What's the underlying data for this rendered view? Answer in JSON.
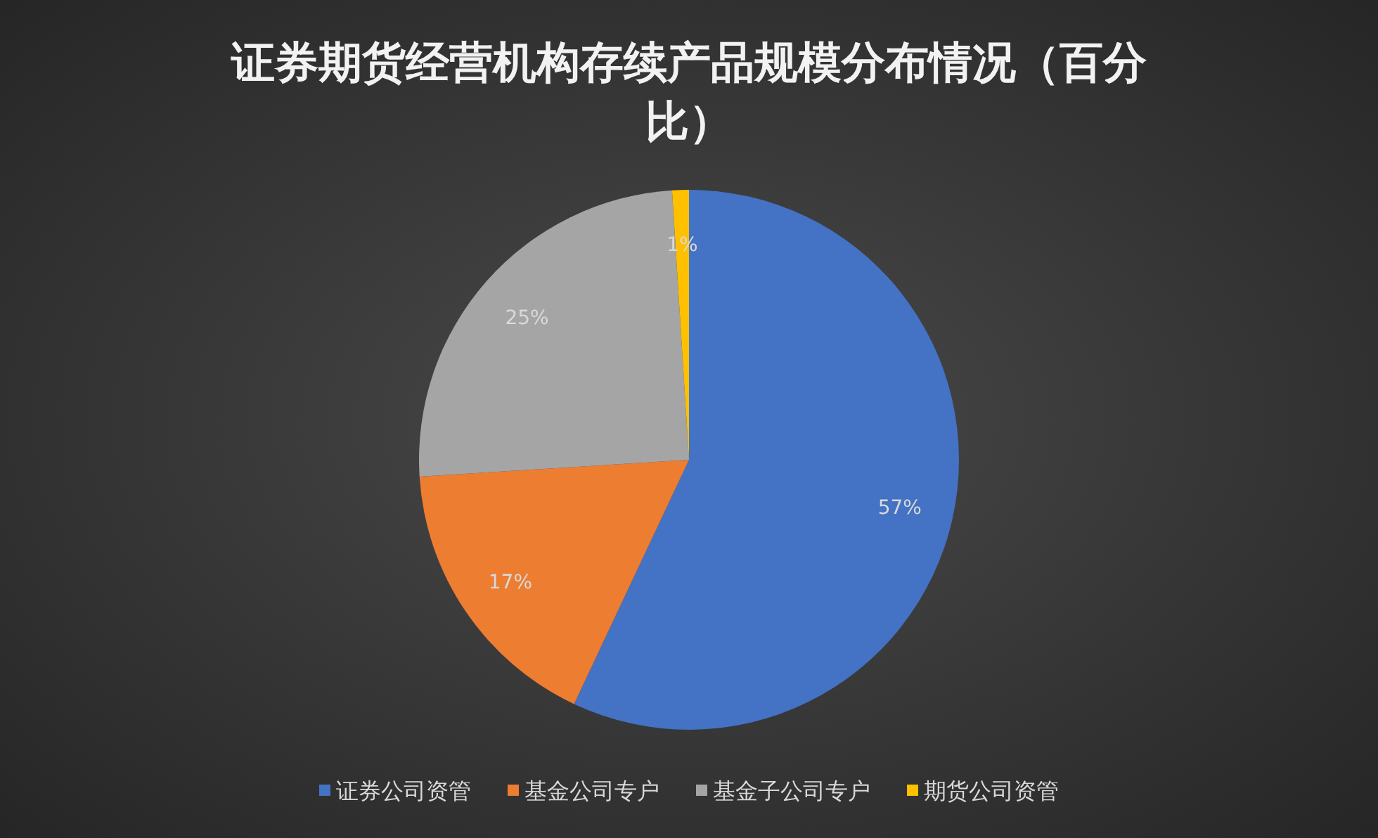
{
  "chart_data": {
    "type": "pie",
    "title": "证券期货经营机构存续产品规模分布情况（百分比）",
    "categories": [
      "证券公司资管",
      "基金公司专户",
      "基金子公司专户",
      "期货公司资管"
    ],
    "values": [
      57,
      17,
      25,
      1
    ],
    "colors": [
      "#4472c4",
      "#ed7d31",
      "#a5a5a5",
      "#ffc000"
    ],
    "value_labels": [
      "57%",
      "17%",
      "25%",
      "1%"
    ],
    "legend": "bottom"
  }
}
